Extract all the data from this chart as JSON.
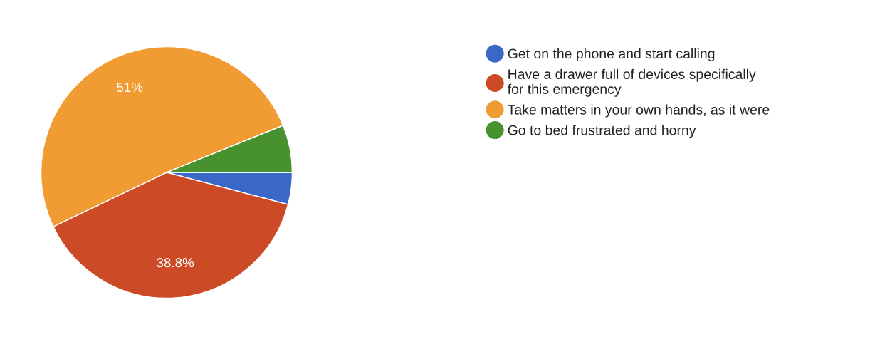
{
  "chart_data": {
    "type": "pie",
    "categories": [
      "Get on the phone and start calling",
      "Have a drawer full of devices specifically for this emergency",
      "Take matters in your own hands, as it were",
      "Go to bed frustrated and horny"
    ],
    "values": [
      4.1,
      38.8,
      51,
      6.1
    ],
    "value_labels": [
      null,
      "38.8%",
      "51%",
      null
    ],
    "colors": [
      "#3a68c8",
      "#cc4a26",
      "#f19c33",
      "#47912f"
    ],
    "legend": "right"
  }
}
